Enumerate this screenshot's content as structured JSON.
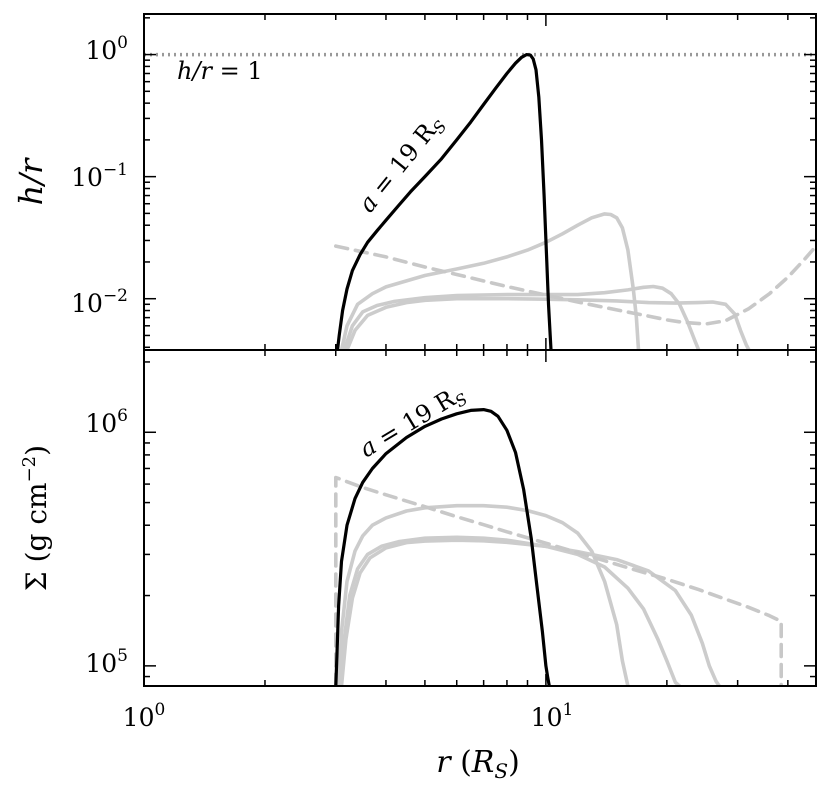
{
  "chart_data": [
    {
      "type": "line",
      "panel": "top",
      "ylabel": "h/r",
      "xscale": "log",
      "yscale": "log",
      "xlim": [
        1,
        47
      ],
      "ylim": [
        0.0038,
        2.15
      ],
      "x_tick_labels": [],
      "y_tick_labels": [
        "10^0",
        "10^-1",
        "10^-2"
      ],
      "annotations": [
        {
          "text": "h/r = 1"
        },
        {
          "text": "a = 19 R_S"
        }
      ],
      "reference_line": {
        "name": "h/r = 1",
        "y": 1,
        "style": "dotted",
        "color": "#999999"
      },
      "series": [
        {
          "style": "solid",
          "color": "#000000",
          "x": [
            3.03,
            3.06,
            3.12,
            3.2,
            3.3,
            3.45,
            3.6,
            3.8,
            4.0,
            4.3,
            4.6,
            5.0,
            5.5,
            6.0,
            6.5,
            7.0,
            7.5,
            8.0,
            8.4,
            8.7,
            8.95,
            9.15,
            9.3,
            9.45,
            9.6,
            9.75,
            9.9,
            10.05,
            10.15,
            10.25,
            10.3
          ],
          "y": [
            0.0038,
            0.005,
            0.008,
            0.012,
            0.017,
            0.023,
            0.029,
            0.036,
            0.044,
            0.058,
            0.075,
            0.1,
            0.14,
            0.2,
            0.28,
            0.39,
            0.53,
            0.7,
            0.85,
            0.95,
            1.0,
            0.99,
            0.92,
            0.75,
            0.45,
            0.2,
            0.07,
            0.02,
            0.009,
            0.005,
            0.0038
          ]
        },
        {
          "style": "solid",
          "color": "#cccccc",
          "x": [
            3.1,
            3.2,
            3.4,
            3.7,
            4.0,
            4.5,
            5.0,
            6.0,
            7.0,
            8.0,
            9.0,
            10.0,
            11.0,
            12.0,
            13.0,
            14.0,
            14.5,
            15.0,
            15.5,
            16.0,
            16.5,
            16.8,
            17.0
          ],
          "y": [
            0.0038,
            0.006,
            0.009,
            0.011,
            0.0125,
            0.014,
            0.0155,
            0.0175,
            0.0195,
            0.022,
            0.025,
            0.029,
            0.034,
            0.04,
            0.046,
            0.0495,
            0.049,
            0.046,
            0.038,
            0.025,
            0.012,
            0.007,
            0.0038
          ]
        },
        {
          "style": "solid",
          "color": "#cccccc",
          "x": [
            3.15,
            3.3,
            3.5,
            3.8,
            4.2,
            5.0,
            6.0,
            8.0,
            10.0,
            12.0,
            14.0,
            16.0,
            17.5,
            18.5,
            19.5,
            20.5,
            21.5,
            22.5,
            23.5,
            24.0
          ],
          "y": [
            0.0038,
            0.006,
            0.0078,
            0.0088,
            0.0095,
            0.0102,
            0.0106,
            0.0108,
            0.0108,
            0.0108,
            0.0112,
            0.0118,
            0.0124,
            0.0126,
            0.0122,
            0.011,
            0.009,
            0.0065,
            0.0045,
            0.0038
          ]
        },
        {
          "style": "solid",
          "color": "#cccccc",
          "x": [
            3.2,
            3.35,
            3.6,
            4.0,
            4.5,
            5.0,
            6.0,
            8.0,
            10.0,
            12.0,
            15.0,
            18.0,
            21.0,
            24.0,
            26.0,
            28.0,
            29.5,
            30.5,
            31.5,
            32.0
          ],
          "y": [
            0.0038,
            0.0055,
            0.0073,
            0.0085,
            0.0093,
            0.0097,
            0.01,
            0.01,
            0.0099,
            0.0098,
            0.0096,
            0.0093,
            0.0092,
            0.0093,
            0.0094,
            0.009,
            0.0075,
            0.0055,
            0.0042,
            0.0038
          ]
        },
        {
          "style": "dashed",
          "color": "#c8c8c8",
          "x": [
            3.0,
            4.0,
            5.0,
            6.0,
            8.0,
            10.0,
            12.0,
            15.0,
            18.0,
            20.0,
            22.0,
            25.0,
            28.0,
            32.0,
            36.0,
            40.0,
            44.0,
            47.0
          ],
          "y": [
            0.027,
            0.022,
            0.0182,
            0.0158,
            0.0126,
            0.0107,
            0.0094,
            0.0081,
            0.0072,
            0.0067,
            0.0064,
            0.0062,
            0.0066,
            0.0083,
            0.011,
            0.015,
            0.021,
            0.027
          ]
        }
      ]
    },
    {
      "type": "line",
      "panel": "bottom",
      "xlabel": "r (R_S)",
      "ylabel": "Σ (g cm^-2)",
      "xscale": "log",
      "yscale": "log",
      "xlim": [
        1,
        47
      ],
      "ylim": [
        82000,
        2250000
      ],
      "x_tick_labels": [
        "10^0",
        "10^1"
      ],
      "y_tick_labels": [
        "10^6",
        "10^5"
      ],
      "annotations": [
        {
          "text": "a = 19 R_S"
        }
      ],
      "series": [
        {
          "style": "solid",
          "color": "#000000",
          "x": [
            3.0,
            3.02,
            3.05,
            3.1,
            3.2,
            3.35,
            3.5,
            3.7,
            4.0,
            4.5,
            5.0,
            5.5,
            6.0,
            6.5,
            7.0,
            7.3,
            7.6,
            8.0,
            8.4,
            8.8,
            9.2,
            9.5,
            9.8,
            10.0,
            10.1,
            10.2
          ],
          "y": [
            82000,
            110000,
            180000,
            280000,
            400000,
            520000,
            610000,
            700000,
            810000,
            950000,
            1060000,
            1140000,
            1200000,
            1240000,
            1250000,
            1230000,
            1170000,
            1020000,
            820000,
            570000,
            350000,
            220000,
            140000,
            100000,
            90000,
            82000
          ]
        },
        {
          "style": "solid",
          "color": "#cccccc",
          "x": [
            3.05,
            3.1,
            3.2,
            3.35,
            3.5,
            3.7,
            4.0,
            4.5,
            5.0,
            6.0,
            7.0,
            8.0,
            9.0,
            10.0,
            11.0,
            12.0,
            13.0,
            14.0,
            15.0,
            15.5,
            16.0
          ],
          "y": [
            82000,
            140000,
            230000,
            310000,
            360000,
            400000,
            430000,
            460000,
            475000,
            485000,
            485000,
            478000,
            462000,
            440000,
            410000,
            370000,
            310000,
            230000,
            150000,
            105000,
            82000
          ]
        },
        {
          "style": "solid",
          "color": "#cccccc",
          "x": [
            3.08,
            3.15,
            3.25,
            3.4,
            3.6,
            3.9,
            4.3,
            5.0,
            6.0,
            7.0,
            8.0,
            10.0,
            12.0,
            14.0,
            16.0,
            17.5,
            19.0,
            20.0,
            21.0,
            21.5
          ],
          "y": [
            82000,
            130000,
            200000,
            260000,
            300000,
            325000,
            340000,
            352000,
            355000,
            352000,
            345000,
            325000,
            300000,
            265000,
            215000,
            175000,
            130000,
            105000,
            85000,
            82000
          ]
        },
        {
          "style": "solid",
          "color": "#cccccc",
          "x": [
            3.1,
            3.18,
            3.3,
            3.45,
            3.65,
            4.0,
            4.5,
            5.0,
            6.0,
            7.0,
            8.0,
            10.0,
            12.0,
            15.0,
            18.0,
            21.0,
            23.0,
            24.5,
            25.5,
            26.5,
            27.0
          ],
          "y": [
            82000,
            130000,
            195000,
            250000,
            290000,
            320000,
            337000,
            342000,
            345000,
            343000,
            338000,
            325000,
            308000,
            285000,
            255000,
            210000,
            165000,
            125000,
            100000,
            86000,
            82000
          ]
        },
        {
          "style": "dashed",
          "color": "#c8c8c8",
          "x": [
            3.0,
            3.0,
            3.5,
            4.0,
            5.0,
            6.0,
            7.0,
            8.0,
            10.0,
            12.0,
            14.0,
            17.0,
            20.0,
            24.0,
            28.0,
            32.0,
            36.0,
            38.5,
            38.5
          ],
          "y": [
            82000,
            640000,
            580000,
            540000,
            480000,
            435000,
            402000,
            375000,
            335000,
            305000,
            282000,
            255000,
            235000,
            212000,
            193000,
            178000,
            164000,
            155000,
            82000
          ]
        }
      ]
    }
  ]
}
